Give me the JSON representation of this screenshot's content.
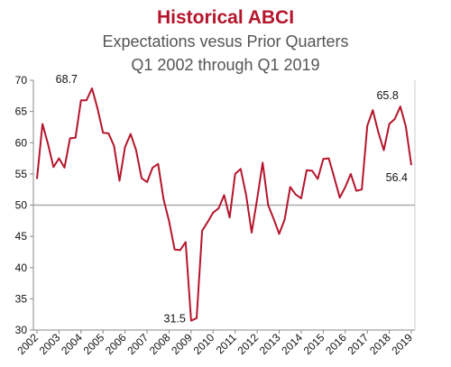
{
  "chart_data": {
    "type": "line",
    "title": "Historical ABCI",
    "subtitle_lines": [
      "Expectations vesus Prior Quarters",
      "Q1 2002 through Q1 2019"
    ],
    "xlabel": "",
    "ylabel": "",
    "ylim": [
      30,
      70
    ],
    "yticks": [
      "30",
      "35",
      "40",
      "45",
      "50",
      "55",
      "60",
      "65",
      "70"
    ],
    "xticks": [
      "2002",
      "2003",
      "2004",
      "2005",
      "2006",
      "2007",
      "2008",
      "2009",
      "2010",
      "2011",
      "2012",
      "2013",
      "2014",
      "2015",
      "2016",
      "2017",
      "2018",
      "2019"
    ],
    "reference_line": 50,
    "series": [
      {
        "x": [
          "Q1 2002",
          "Q2 2002",
          "Q3 2002",
          "Q4 2002",
          "Q1 2003",
          "Q2 2003",
          "Q3 2003",
          "Q4 2003",
          "Q1 2004",
          "Q2 2004",
          "Q3 2004",
          "Q4 2004",
          "Q1 2005",
          "Q2 2005",
          "Q3 2005",
          "Q4 2005",
          "Q1 2006",
          "Q2 2006",
          "Q3 2006",
          "Q4 2006",
          "Q1 2007",
          "Q2 2007",
          "Q3 2007",
          "Q4 2007",
          "Q1 2008",
          "Q2 2008",
          "Q3 2008",
          "Q4 2008",
          "Q1 2009",
          "Q2 2009",
          "Q3 2009",
          "Q4 2009",
          "Q1 2010",
          "Q2 2010",
          "Q3 2010",
          "Q4 2010",
          "Q1 2011",
          "Q2 2011",
          "Q3 2011",
          "Q4 2011",
          "Q1 2012",
          "Q2 2012",
          "Q3 2012",
          "Q4 2012",
          "Q1 2013",
          "Q2 2013",
          "Q3 2013",
          "Q4 2013",
          "Q1 2014",
          "Q2 2014",
          "Q3 2014",
          "Q4 2014",
          "Q1 2015",
          "Q2 2015",
          "Q3 2015",
          "Q4 2015",
          "Q1 2016",
          "Q2 2016",
          "Q3 2016",
          "Q4 2016",
          "Q1 2017",
          "Q2 2017",
          "Q3 2017",
          "Q4 2017",
          "Q1 2018",
          "Q2 2018",
          "Q3 2018",
          "Q4 2018",
          "Q1 2019"
        ],
        "values": [
          54.2,
          63.0,
          59.8,
          56.1,
          57.5,
          56.0,
          60.7,
          60.8,
          66.8,
          66.8,
          68.7,
          65.5,
          61.6,
          61.5,
          59.5,
          53.9,
          59.3,
          61.4,
          58.8,
          54.3,
          53.7,
          56.0,
          56.6,
          50.9,
          47.4,
          42.9,
          42.8,
          44.1,
          31.5,
          31.9,
          45.9,
          47.3,
          48.8,
          49.5,
          51.6,
          48.0,
          55.0,
          55.8,
          51.6,
          45.6,
          51.0,
          56.8,
          50.0,
          47.8,
          45.4,
          47.7,
          52.9,
          51.7,
          51.1,
          55.6,
          55.5,
          54.2,
          57.4,
          57.5,
          54.4,
          51.2,
          52.9,
          55.0,
          52.3,
          52.5,
          62.7,
          65.2,
          61.7,
          58.8,
          63.0,
          63.8,
          65.8,
          62.6,
          56.4
        ]
      }
    ],
    "annotations": [
      {
        "text": "68.7",
        "x": "Q3 2004",
        "y": 68.7
      },
      {
        "text": "31.5",
        "x": "Q1 2009",
        "y": 31.5
      },
      {
        "text": "65.8",
        "x": "Q3 2018",
        "y": 65.8
      },
      {
        "text": "56.4",
        "x": "Q1 2019",
        "y": 56.4
      }
    ],
    "colors": {
      "line": "#b5152b",
      "title": "#b5152b",
      "axis": "#888888",
      "reference_line": "#aaaaaa"
    },
    "grid": false
  }
}
